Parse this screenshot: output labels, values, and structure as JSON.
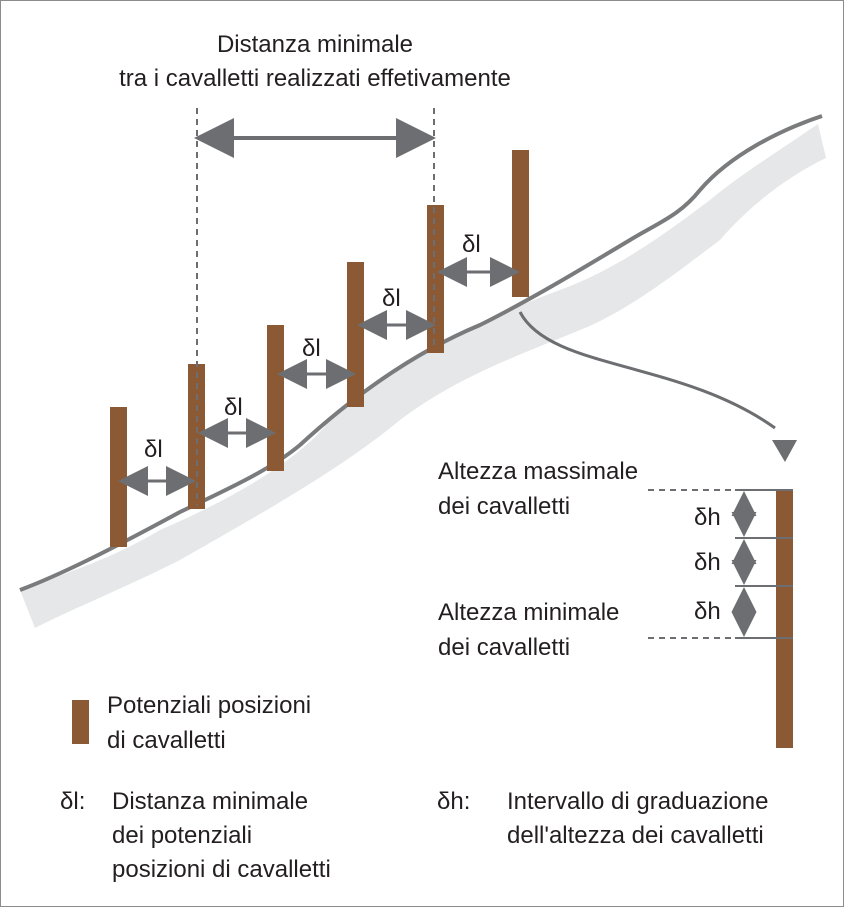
{
  "colors": {
    "post": "#8b5a34",
    "ground": "#e6e7e8",
    "ground_edge": "#7a7b7d",
    "arrow": "#6d6e71",
    "text": "#231f20",
    "border": "#8c8c8c"
  },
  "top_label": {
    "line1": "Distanza minimale",
    "line2": "tra i cavalletti realizzati effetivamente"
  },
  "delta_l": "δl",
  "delta_h": "δh",
  "right": {
    "max_line1": "Altezza massimale",
    "max_line2": "dei cavalletti",
    "min_line1": "Altezza minimale",
    "min_line2": "dei cavalletti"
  },
  "legend": {
    "post_line1": "Potenziali posizioni",
    "post_line2": "di cavalletti",
    "dl_symbol": "δl:",
    "dl_line1": "Distanza minimale",
    "dl_line2": "dei potenziali",
    "dl_line3": "posizioni di cavalletti",
    "dh_symbol": "δh:",
    "dh_line1": "Intervallo di graduazione",
    "dh_line2": "dell'altezza dei cavalletti"
  },
  "icons": [
    "post-icon",
    "double-arrow-icon",
    "curved-arrow-icon"
  ]
}
